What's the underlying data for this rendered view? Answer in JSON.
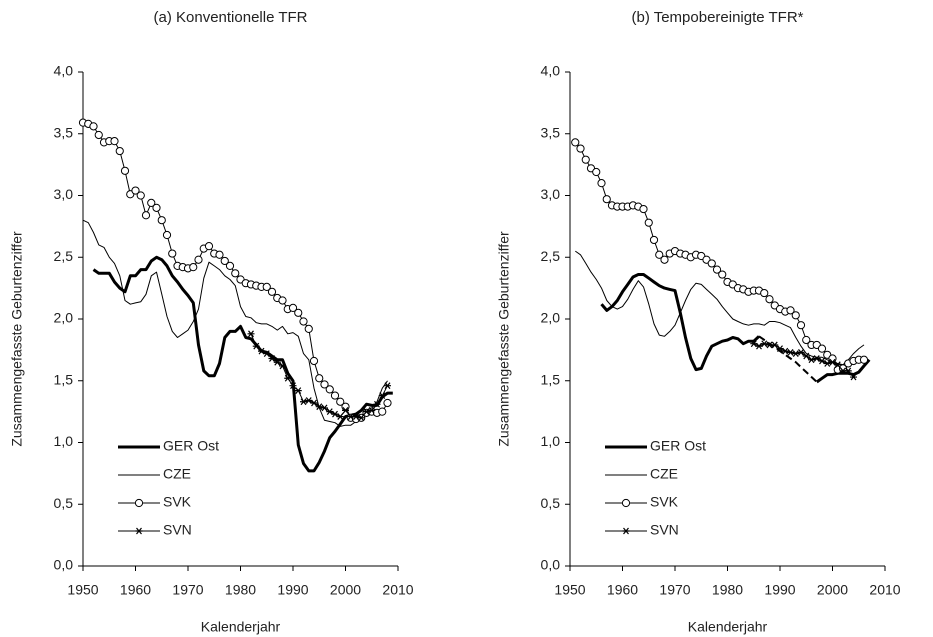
{
  "chart_data": [
    {
      "type": "line",
      "title": "(a) Konventionelle TFR",
      "xlabel": "Kalenderjahr",
      "ylabel": "Zusammengefasste Geburtenziffer",
      "x": [
        1950,
        1951,
        1952,
        1953,
        1954,
        1955,
        1956,
        1957,
        1958,
        1959,
        1960,
        1961,
        1962,
        1963,
        1964,
        1965,
        1966,
        1967,
        1968,
        1969,
        1970,
        1971,
        1972,
        1973,
        1974,
        1975,
        1976,
        1977,
        1978,
        1979,
        1980,
        1981,
        1982,
        1983,
        1984,
        1985,
        1986,
        1987,
        1988,
        1989,
        1990,
        1991,
        1992,
        1993,
        1994,
        1995,
        1996,
        1997,
        1998,
        1999,
        2000,
        2001,
        2002,
        2003,
        2004,
        2005,
        2006,
        2007,
        2008,
        2009
      ],
      "xlim": [
        1950,
        2010
      ],
      "xticks": [
        1950,
        1960,
        1970,
        1980,
        1990,
        2000,
        2010
      ],
      "ylim": [
        0,
        4
      ],
      "yticks": [
        {
          "value": 0,
          "label": "0,0"
        },
        {
          "value": 0.5,
          "label": "0,5"
        },
        {
          "value": 1,
          "label": "1,0"
        },
        {
          "value": 1.5,
          "label": "1,5"
        },
        {
          "value": 2,
          "label": "2,0"
        },
        {
          "value": 2.5,
          "label": "2,5"
        },
        {
          "value": 3,
          "label": "3,0"
        },
        {
          "value": 3.5,
          "label": "3,5"
        },
        {
          "value": 4,
          "label": "4,0"
        }
      ],
      "series": [
        {
          "name": "GER Ost",
          "color": "#000000",
          "line_width": 3,
          "marker": "none",
          "values": [
            null,
            null,
            2.4,
            2.37,
            2.37,
            2.37,
            2.3,
            2.25,
            2.22,
            2.35,
            2.35,
            2.4,
            2.4,
            2.47,
            2.5,
            2.48,
            2.43,
            2.35,
            2.3,
            2.24,
            2.19,
            2.13,
            1.79,
            1.58,
            1.54,
            1.54,
            1.64,
            1.85,
            1.9,
            1.9,
            1.94,
            1.85,
            1.84,
            1.79,
            1.74,
            1.73,
            1.7,
            1.67,
            1.67,
            1.56,
            1.5,
            0.98,
            0.83,
            0.77,
            0.77,
            0.84,
            0.93,
            1.04,
            1.09,
            1.15,
            1.21,
            1.22,
            1.23,
            1.26,
            1.31,
            1.3,
            1.3,
            1.37,
            1.4,
            1.4
          ]
        },
        {
          "name": "CZE",
          "color": "#000000",
          "line_width": 1,
          "marker": "none",
          "values": [
            2.8,
            2.78,
            2.7,
            2.6,
            2.58,
            2.5,
            2.45,
            2.35,
            2.15,
            2.12,
            2.13,
            2.14,
            2.2,
            2.35,
            2.38,
            2.2,
            2.02,
            1.9,
            1.85,
            1.88,
            1.91,
            1.98,
            2.08,
            2.33,
            2.46,
            2.43,
            2.4,
            2.35,
            2.32,
            2.27,
            2.1,
            2.02,
            2.01,
            1.97,
            1.96,
            1.96,
            1.94,
            1.91,
            1.94,
            1.88,
            1.89,
            1.86,
            1.72,
            1.67,
            1.44,
            1.28,
            1.18,
            1.17,
            1.16,
            1.13,
            1.14,
            1.14,
            1.17,
            1.18,
            1.23,
            1.28,
            1.33,
            1.44,
            1.5,
            null
          ]
        },
        {
          "name": "SVK",
          "color": "#000000",
          "line_width": 1,
          "marker": "circle",
          "values": [
            3.59,
            3.58,
            3.56,
            3.49,
            3.43,
            3.44,
            3.44,
            3.36,
            3.2,
            3.01,
            3.04,
            3.0,
            2.84,
            2.94,
            2.9,
            2.8,
            2.68,
            2.53,
            2.43,
            2.42,
            2.41,
            2.42,
            2.48,
            2.57,
            2.59,
            2.53,
            2.52,
            2.47,
            2.43,
            2.37,
            2.32,
            2.29,
            2.28,
            2.27,
            2.26,
            2.26,
            2.22,
            2.17,
            2.15,
            2.08,
            2.09,
            2.05,
            1.98,
            1.92,
            1.66,
            1.52,
            1.47,
            1.43,
            1.38,
            1.33,
            1.29,
            1.2,
            1.19,
            1.2,
            1.24,
            1.25,
            1.24,
            1.25,
            1.32,
            null
          ]
        },
        {
          "name": "SVN",
          "color": "#000000",
          "line_width": 1,
          "marker": "star",
          "values": [
            null,
            null,
            null,
            null,
            null,
            null,
            null,
            null,
            null,
            null,
            null,
            null,
            null,
            null,
            null,
            null,
            null,
            null,
            null,
            null,
            null,
            null,
            null,
            null,
            null,
            null,
            null,
            null,
            null,
            null,
            null,
            null,
            1.88,
            1.78,
            1.74,
            1.72,
            1.68,
            1.65,
            1.62,
            1.52,
            1.46,
            1.42,
            1.33,
            1.34,
            1.32,
            1.29,
            1.28,
            1.25,
            1.23,
            1.21,
            1.26,
            1.21,
            1.21,
            1.2,
            1.25,
            1.26,
            1.31,
            1.38,
            1.46,
            null
          ]
        }
      ]
    },
    {
      "type": "line",
      "title": "(b) Tempobereinigte TFR*",
      "xlabel": "Kalenderjahr",
      "ylabel": "Zusammengefasste Geburtenziffer",
      "x": [
        1950,
        1951,
        1952,
        1953,
        1954,
        1955,
        1956,
        1957,
        1958,
        1959,
        1960,
        1961,
        1962,
        1963,
        1964,
        1965,
        1966,
        1967,
        1968,
        1969,
        1970,
        1971,
        1972,
        1973,
        1974,
        1975,
        1976,
        1977,
        1978,
        1979,
        1980,
        1981,
        1982,
        1983,
        1984,
        1985,
        1986,
        1987,
        1988,
        1989,
        1990,
        1991,
        1992,
        1993,
        1994,
        1995,
        1996,
        1997,
        1998,
        1999,
        2000,
        2001,
        2002,
        2003,
        2004,
        2005,
        2006,
        2007,
        2008,
        2009
      ],
      "xlim": [
        1950,
        2010
      ],
      "xticks": [
        1950,
        1960,
        1970,
        1980,
        1990,
        2000,
        2010
      ],
      "ylim": [
        0,
        4
      ],
      "yticks": [
        {
          "value": 0,
          "label": "0,0"
        },
        {
          "value": 0.5,
          "label": "0,5"
        },
        {
          "value": 1,
          "label": "1,0"
        },
        {
          "value": 1.5,
          "label": "1,5"
        },
        {
          "value": 2,
          "label": "2,0"
        },
        {
          "value": 2.5,
          "label": "2,5"
        },
        {
          "value": 3,
          "label": "3,0"
        },
        {
          "value": 3.5,
          "label": "3,5"
        },
        {
          "value": 4,
          "label": "4,0"
        }
      ],
      "series": [
        {
          "name": "GER Ost",
          "color": "#000000",
          "line_width": 3,
          "marker": "none",
          "values": [
            null,
            null,
            null,
            null,
            null,
            null,
            2.12,
            2.07,
            2.1,
            2.15,
            2.22,
            2.28,
            2.34,
            2.36,
            2.36,
            2.33,
            2.3,
            2.27,
            2.25,
            2.24,
            2.23,
            2.05,
            1.85,
            1.68,
            1.59,
            1.6,
            1.7,
            1.78,
            1.8,
            1.82,
            1.83,
            1.85,
            1.84,
            1.8,
            1.82,
            1.82,
            1.86,
            null,
            null,
            null,
            null,
            null,
            null,
            null,
            null,
            null,
            null,
            1.49,
            1.52,
            1.55,
            1.55,
            1.56,
            1.56,
            1.56,
            1.55,
            1.57,
            1.62,
            1.67,
            null,
            null
          ]
        },
        {
          "color": "#000000",
          "line_width": 2,
          "dash": true,
          "marker": "none",
          "values": [
            null,
            null,
            null,
            null,
            null,
            null,
            null,
            null,
            null,
            null,
            null,
            null,
            null,
            null,
            null,
            null,
            null,
            null,
            null,
            null,
            null,
            null,
            null,
            null,
            null,
            null,
            null,
            null,
            null,
            null,
            null,
            null,
            null,
            null,
            null,
            null,
            1.86,
            1.83,
            1.8,
            1.77,
            1.74,
            1.71,
            1.68,
            1.65,
            1.61,
            1.57,
            1.53,
            1.49,
            null,
            null,
            null,
            null,
            null,
            null,
            null,
            null,
            null,
            null,
            null,
            null
          ]
        },
        {
          "name": "CZE",
          "color": "#000000",
          "line_width": 1,
          "marker": "none",
          "values": [
            null,
            2.55,
            2.52,
            2.45,
            2.38,
            2.32,
            2.25,
            2.15,
            2.1,
            2.08,
            2.1,
            2.16,
            2.24,
            2.31,
            2.26,
            2.12,
            1.96,
            1.87,
            1.86,
            1.9,
            1.95,
            2.05,
            2.15,
            2.24,
            2.29,
            2.28,
            2.24,
            2.2,
            2.16,
            2.1,
            2.05,
            2.0,
            1.98,
            1.96,
            1.95,
            1.96,
            1.96,
            1.95,
            1.98,
            1.98,
            1.97,
            1.95,
            1.93,
            1.85,
            1.78,
            1.72,
            1.7,
            1.69,
            1.69,
            1.67,
            1.65,
            1.64,
            1.63,
            1.67,
            1.72,
            1.76,
            1.79,
            null,
            null,
            null
          ]
        },
        {
          "name": "SVK",
          "color": "#000000",
          "line_width": 1,
          "marker": "circle",
          "values": [
            null,
            3.43,
            3.38,
            3.29,
            3.22,
            3.19,
            3.1,
            2.97,
            2.92,
            2.91,
            2.91,
            2.91,
            2.92,
            2.91,
            2.89,
            2.78,
            2.64,
            2.52,
            2.48,
            2.53,
            2.55,
            2.53,
            2.52,
            2.5,
            2.52,
            2.51,
            2.48,
            2.45,
            2.4,
            2.36,
            2.3,
            2.28,
            2.25,
            2.24,
            2.22,
            2.23,
            2.23,
            2.21,
            2.16,
            2.11,
            2.08,
            2.06,
            2.07,
            2.03,
            1.95,
            1.83,
            1.79,
            1.79,
            1.76,
            1.71,
            1.68,
            1.59,
            1.6,
            1.64,
            1.66,
            1.67,
            1.67,
            null,
            null,
            null
          ]
        },
        {
          "name": "SVN",
          "color": "#000000",
          "line_width": 1,
          "marker": "star",
          "values": [
            null,
            null,
            null,
            null,
            null,
            null,
            null,
            null,
            null,
            null,
            null,
            null,
            null,
            null,
            null,
            null,
            null,
            null,
            null,
            null,
            null,
            null,
            null,
            null,
            null,
            null,
            null,
            null,
            null,
            null,
            null,
            null,
            null,
            null,
            null,
            1.8,
            1.78,
            1.8,
            1.79,
            1.79,
            1.76,
            1.74,
            1.73,
            1.72,
            1.73,
            1.7,
            1.67,
            1.68,
            1.66,
            1.64,
            1.65,
            1.63,
            1.58,
            1.58,
            1.53,
            null,
            null,
            null,
            null,
            null
          ]
        }
      ]
    }
  ]
}
